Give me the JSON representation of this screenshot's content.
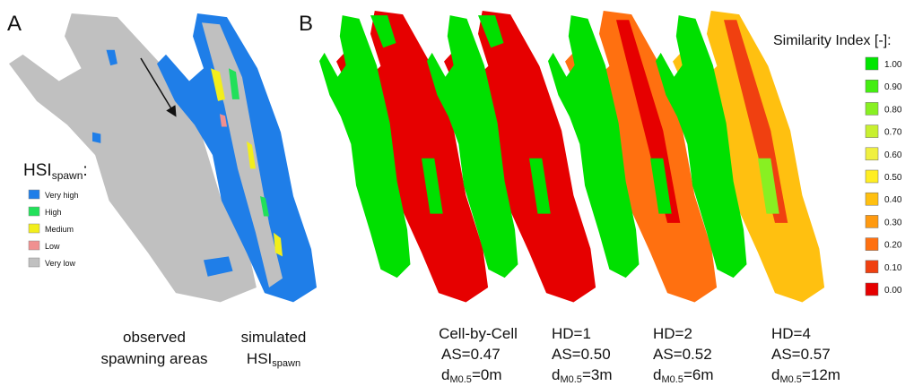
{
  "panel_a": {
    "label": "A",
    "hsi_label": {
      "main": "HSI",
      "sub": "spawn",
      "suffix": ":"
    },
    "legend": [
      {
        "label": "Very high",
        "color": "#1f7ee8"
      },
      {
        "label": "High",
        "color": "#22e05a"
      },
      {
        "label": "Medium",
        "color": "#f2ee1c"
      },
      {
        "label": "Low",
        "color": "#f09090"
      },
      {
        "label": "Very low",
        "color": "#c0c0c0"
      }
    ],
    "observed": [
      "observed",
      "spawning  areas"
    ],
    "simulated": {
      "line1": "simulated",
      "main": "HSI",
      "sub": "spawn"
    }
  },
  "panel_b": {
    "label": "B",
    "legend_title": "Similarity Index [-]:",
    "legend": [
      {
        "label": "1.00",
        "color": "#00e600"
      },
      {
        "label": "0.90",
        "color": "#44ee11"
      },
      {
        "label": "0.80",
        "color": "#88f022"
      },
      {
        "label": "0.70",
        "color": "#c8f030"
      },
      {
        "label": "0.60",
        "color": "#f0f040"
      },
      {
        "label": "0.50",
        "color": "#ffee22"
      },
      {
        "label": "0.40",
        "color": "#ffc010"
      },
      {
        "label": "0.30",
        "color": "#ff9a10"
      },
      {
        "label": "0.20",
        "color": "#ff7010"
      },
      {
        "label": "0.10",
        "color": "#f04010"
      },
      {
        "label": "0.00",
        "color": "#e60000"
      }
    ],
    "maps": [
      {
        "title": "Cell-by-Cell",
        "as": "AS=0.47",
        "d_main": "d",
        "d_sub": "M0.5",
        "d_suffix": "=0m"
      },
      {
        "title": "HD=1",
        "as": "AS=0.50",
        "d_main": "d",
        "d_sub": "M0.5",
        "d_suffix": "=3m"
      },
      {
        "title": "HD=2",
        "as": "AS=0.52",
        "d_main": "d",
        "d_sub": "M0.5",
        "d_suffix": "=6m"
      },
      {
        "title": "HD=4",
        "as": "AS=0.57",
        "d_main": "d",
        "d_sub": "M0.5",
        "d_suffix": "=12m"
      }
    ]
  }
}
